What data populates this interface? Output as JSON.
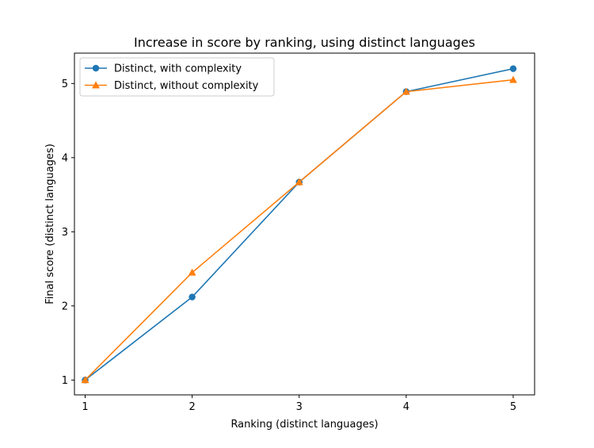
{
  "chart_data": {
    "type": "line",
    "title": "Increase in score by ranking, using distinct languages",
    "xlabel": "Ranking (distinct languages)",
    "ylabel": "Final score (distinct languages)",
    "x": [
      1,
      2,
      3,
      4,
      5
    ],
    "xlim": [
      0.9,
      5.2
    ],
    "ylim": [
      0.8,
      5.41
    ],
    "xticks": [
      1,
      2,
      3,
      4,
      5
    ],
    "yticks": [
      1,
      2,
      3,
      4,
      5
    ],
    "grid": false,
    "legend_position": "upper left",
    "series": [
      {
        "name": "Distinct, with complexity",
        "values": [
          1.0,
          2.12,
          3.67,
          4.89,
          5.2
        ],
        "color": "#1f77b4",
        "marker": "circle"
      },
      {
        "name": "Distinct, without complexity",
        "values": [
          1.0,
          2.45,
          3.67,
          4.89,
          5.05
        ],
        "color": "#ff7f0e",
        "marker": "triangle"
      }
    ]
  }
}
